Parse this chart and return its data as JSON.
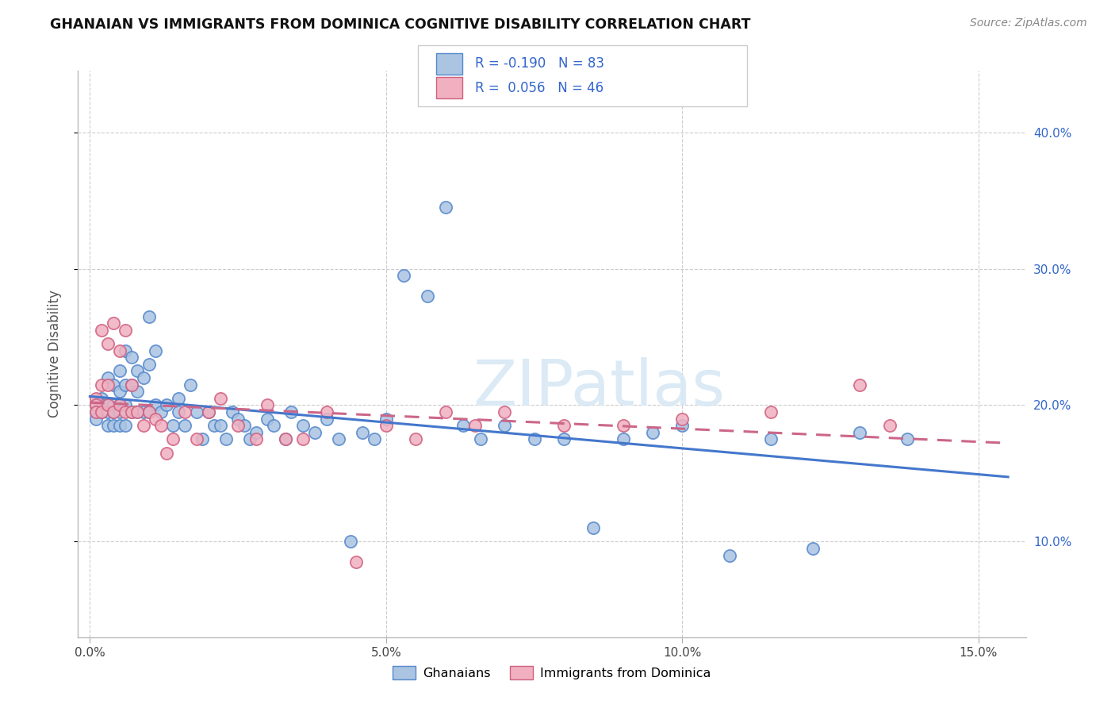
{
  "title": "GHANAIAN VS IMMIGRANTS FROM DOMINICA COGNITIVE DISABILITY CORRELATION CHART",
  "source": "Source: ZipAtlas.com",
  "ylabel_label": "Cognitive Disability",
  "xlim": [
    -0.002,
    0.158
  ],
  "ylim": [
    0.03,
    0.445
  ],
  "xticks": [
    0.0,
    0.05,
    0.1,
    0.15
  ],
  "xtick_labels": [
    "0.0%",
    "5.0%",
    "10.0%",
    "15.0%"
  ],
  "yticks": [
    0.1,
    0.2,
    0.3,
    0.4
  ],
  "ytick_labels": [
    "10.0%",
    "20.0%",
    "30.0%",
    "40.0%"
  ],
  "ghanaian_face": "#aac4e2",
  "ghanaian_edge": "#5588cc",
  "dominica_face": "#f0b0c0",
  "dominica_edge": "#d06080",
  "ghana_line_color": "#4477cc",
  "dominica_line_color": "#cc6688",
  "legend_color": "#3366cc",
  "watermark_color": "#d8e8f4",
  "legend_R_ghana": "-0.190",
  "legend_N_ghana": "83",
  "legend_R_dominica": "0.056",
  "legend_N_dominica": "46",
  "ghanaian_x": [
    0.001,
    0.001,
    0.001,
    0.002,
    0.002,
    0.002,
    0.003,
    0.003,
    0.003,
    0.003,
    0.004,
    0.004,
    0.004,
    0.004,
    0.005,
    0.005,
    0.005,
    0.005,
    0.005,
    0.006,
    0.006,
    0.006,
    0.006,
    0.007,
    0.007,
    0.007,
    0.008,
    0.008,
    0.008,
    0.009,
    0.009,
    0.01,
    0.01,
    0.01,
    0.011,
    0.011,
    0.012,
    0.013,
    0.014,
    0.015,
    0.015,
    0.016,
    0.017,
    0.018,
    0.019,
    0.02,
    0.021,
    0.022,
    0.023,
    0.024,
    0.025,
    0.026,
    0.027,
    0.028,
    0.03,
    0.031,
    0.033,
    0.034,
    0.036,
    0.038,
    0.04,
    0.042,
    0.044,
    0.046,
    0.048,
    0.05,
    0.053,
    0.057,
    0.06,
    0.063,
    0.066,
    0.07,
    0.075,
    0.08,
    0.085,
    0.09,
    0.095,
    0.1,
    0.108,
    0.115,
    0.122,
    0.13,
    0.138
  ],
  "ghanaian_y": [
    0.2,
    0.195,
    0.19,
    0.205,
    0.2,
    0.195,
    0.22,
    0.2,
    0.195,
    0.185,
    0.215,
    0.2,
    0.195,
    0.185,
    0.225,
    0.21,
    0.2,
    0.195,
    0.185,
    0.24,
    0.215,
    0.2,
    0.185,
    0.235,
    0.215,
    0.195,
    0.225,
    0.21,
    0.195,
    0.22,
    0.195,
    0.265,
    0.23,
    0.195,
    0.24,
    0.2,
    0.195,
    0.2,
    0.185,
    0.205,
    0.195,
    0.185,
    0.215,
    0.195,
    0.175,
    0.195,
    0.185,
    0.185,
    0.175,
    0.195,
    0.19,
    0.185,
    0.175,
    0.18,
    0.19,
    0.185,
    0.175,
    0.195,
    0.185,
    0.18,
    0.19,
    0.175,
    0.1,
    0.18,
    0.175,
    0.19,
    0.295,
    0.28,
    0.345,
    0.185,
    0.175,
    0.185,
    0.175,
    0.175,
    0.11,
    0.175,
    0.18,
    0.185,
    0.09,
    0.175,
    0.095,
    0.18,
    0.175
  ],
  "dominica_x": [
    0.001,
    0.001,
    0.001,
    0.002,
    0.002,
    0.002,
    0.003,
    0.003,
    0.003,
    0.004,
    0.004,
    0.005,
    0.005,
    0.006,
    0.006,
    0.007,
    0.007,
    0.008,
    0.009,
    0.01,
    0.011,
    0.012,
    0.013,
    0.014,
    0.016,
    0.018,
    0.02,
    0.022,
    0.025,
    0.028,
    0.03,
    0.033,
    0.036,
    0.04,
    0.045,
    0.05,
    0.055,
    0.06,
    0.065,
    0.07,
    0.08,
    0.09,
    0.1,
    0.115,
    0.13,
    0.135
  ],
  "dominica_y": [
    0.205,
    0.2,
    0.195,
    0.255,
    0.215,
    0.195,
    0.245,
    0.215,
    0.2,
    0.26,
    0.195,
    0.24,
    0.2,
    0.255,
    0.195,
    0.215,
    0.195,
    0.195,
    0.185,
    0.195,
    0.19,
    0.185,
    0.165,
    0.175,
    0.195,
    0.175,
    0.195,
    0.205,
    0.185,
    0.175,
    0.2,
    0.175,
    0.175,
    0.195,
    0.085,
    0.185,
    0.175,
    0.195,
    0.185,
    0.195,
    0.185,
    0.185,
    0.19,
    0.195,
    0.215,
    0.185
  ]
}
